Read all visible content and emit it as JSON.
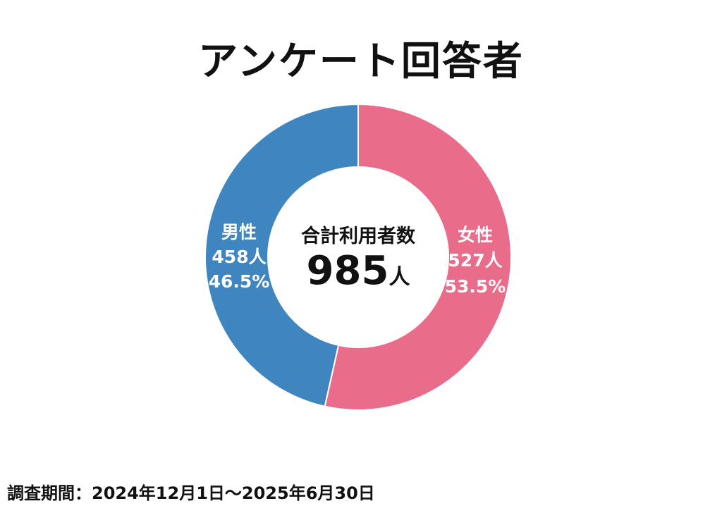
{
  "chart_data": {
    "type": "pie",
    "variant": "donut",
    "title": "アンケート回答者",
    "center_label": "合計利用者数",
    "center_value": "985",
    "center_unit": "人",
    "total": 985,
    "slices": [
      {
        "name": "女性",
        "value": 527,
        "count_label": "527人",
        "percent": 53.5,
        "percent_label": "53.5%",
        "color": "#e96c8a"
      },
      {
        "name": "男性",
        "value": 458,
        "count_label": "458人",
        "percent": 46.5,
        "percent_label": "46.5%",
        "color": "#3f86c0"
      }
    ],
    "start_angle": "top",
    "direction": "clockwise",
    "legend": "none"
  },
  "footer": {
    "survey_period": "調査期間：2024年12月1日～2025年6月30日"
  }
}
